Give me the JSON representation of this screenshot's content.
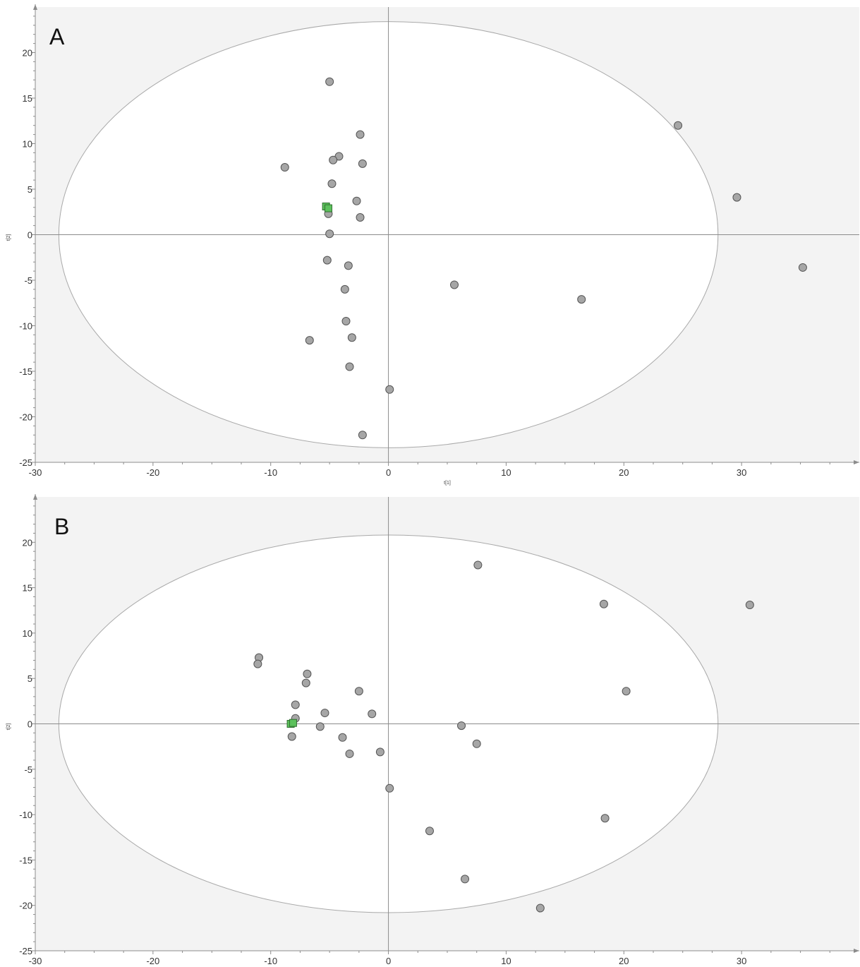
{
  "colors": {
    "outside_ellipse": "#f3f3f3",
    "ellipse_fill": "#ffffff",
    "ellipse_stroke": "#a9a9a9",
    "axis": "#8c8c8c",
    "point_fill": "#a6a6a6",
    "point_stroke": "#555555",
    "highlight_fill": "#5cc15c",
    "highlight_stroke": "#2f6e2f"
  },
  "chart_data": [
    {
      "type": "scatter",
      "panel_label": "A",
      "xlabel": "t[1]",
      "ylabel": "t[2]",
      "xlim": [
        -30,
        40
      ],
      "ylim": [
        -25,
        25
      ],
      "xticks": [
        -30,
        -20,
        -10,
        0,
        10,
        20,
        30
      ],
      "yticks": [
        -25,
        -20,
        -15,
        -10,
        -5,
        0,
        5,
        10,
        15,
        20
      ],
      "ellipse": {
        "rx": 28,
        "ry": 23.4
      },
      "points": [
        [
          -5,
          16.8
        ],
        [
          -2.4,
          11
        ],
        [
          -8.8,
          7.4
        ],
        [
          -4.2,
          8.6
        ],
        [
          -4.7,
          8.2
        ],
        [
          -2.2,
          7.8
        ],
        [
          -4.8,
          5.6
        ],
        [
          -2.7,
          3.7
        ],
        [
          -2.4,
          1.9
        ],
        [
          -5.1,
          2.3
        ],
        [
          -5,
          0.1
        ],
        [
          -5.2,
          -2.8
        ],
        [
          -3.4,
          -3.4
        ],
        [
          -3.7,
          -6
        ],
        [
          -3.6,
          -9.5
        ],
        [
          -6.7,
          -11.6
        ],
        [
          -3.1,
          -11.3
        ],
        [
          -3.3,
          -14.5
        ],
        [
          0.1,
          -17
        ],
        [
          -2.2,
          -22
        ],
        [
          5.6,
          -5.5
        ],
        [
          16.4,
          -7.1
        ],
        [
          24.6,
          12
        ],
        [
          29.6,
          4.1
        ],
        [
          35.2,
          -3.6
        ]
      ],
      "highlight_points": [
        [
          -5.3,
          3.1
        ],
        [
          -5.1,
          2.9
        ]
      ]
    },
    {
      "type": "scatter",
      "panel_label": "B",
      "xlabel": "",
      "ylabel": "t[2]",
      "xlim": [
        -30,
        40
      ],
      "ylim": [
        -25,
        25
      ],
      "xticks": [
        -30,
        -20,
        -10,
        0,
        10,
        20,
        30
      ],
      "yticks": [
        -25,
        -20,
        -15,
        -10,
        -5,
        0,
        5,
        10,
        15,
        20
      ],
      "ellipse": {
        "rx": 28,
        "ry": 20.8
      },
      "points": [
        [
          7.6,
          17.5
        ],
        [
          18.3,
          13.2
        ],
        [
          30.7,
          13.1
        ],
        [
          -11,
          7.3
        ],
        [
          -11.1,
          6.6
        ],
        [
          -6.9,
          5.5
        ],
        [
          -7,
          4.5
        ],
        [
          -2.5,
          3.6
        ],
        [
          20.2,
          3.6
        ],
        [
          -7.9,
          2.1
        ],
        [
          -5.4,
          1.2
        ],
        [
          -1.4,
          1.1
        ],
        [
          -7.9,
          0.6
        ],
        [
          -5.8,
          -0.3
        ],
        [
          6.2,
          -0.2
        ],
        [
          -8.2,
          -1.4
        ],
        [
          -3.9,
          -1.5
        ],
        [
          7.5,
          -2.2
        ],
        [
          -3.3,
          -3.3
        ],
        [
          -0.7,
          -3.1
        ],
        [
          0.1,
          -7.1
        ],
        [
          3.5,
          -11.8
        ],
        [
          18.4,
          -10.4
        ],
        [
          6.5,
          -17.1
        ],
        [
          12.9,
          -20.3
        ]
      ],
      "highlight_points": [
        [
          -8.3,
          0
        ],
        [
          -8.1,
          0.1
        ]
      ]
    }
  ]
}
